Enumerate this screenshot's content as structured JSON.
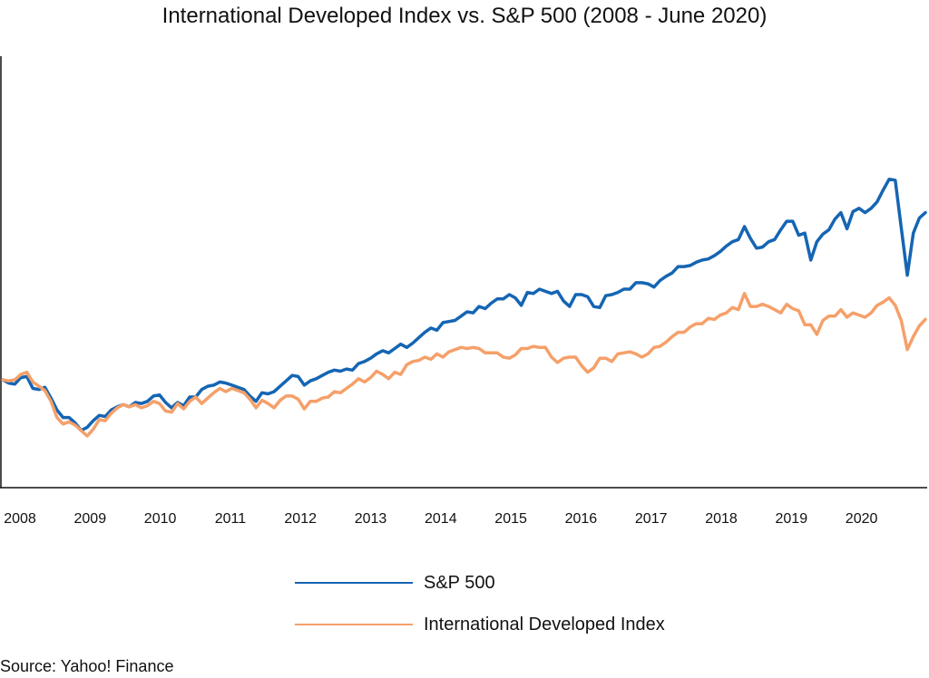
{
  "chart_data": {
    "type": "line",
    "title": "International Developed Index vs. S&P 500 (2008 - June 2020)",
    "x_ticks": [
      "2008",
      "2009",
      "2010",
      "2011",
      "2012",
      "2013",
      "2014",
      "2015",
      "2016",
      "2017",
      "2018",
      "2019",
      "2020"
    ],
    "ylim": [
      0,
      400
    ],
    "grid": false,
    "legend_position": "bottom",
    "series": [
      {
        "name": "S&P 500",
        "color": "#1565b3",
        "values": [
          100,
          97,
          96,
          102,
          103,
          92,
          91,
          93,
          83,
          72,
          65,
          65,
          60,
          53,
          56,
          62,
          67,
          66,
          72,
          75,
          77,
          75,
          79,
          78,
          80,
          85,
          86,
          79,
          74,
          79,
          76,
          84,
          84,
          91,
          94,
          95,
          98,
          97,
          95,
          93,
          91,
          85,
          80,
          88,
          87,
          89,
          94,
          99,
          104,
          103,
          95,
          99,
          101,
          104,
          107,
          109,
          108,
          110,
          109,
          115,
          117,
          120,
          124,
          127,
          125,
          129,
          133,
          130,
          134,
          139,
          144,
          148,
          146,
          153,
          154,
          155,
          159,
          163,
          162,
          168,
          166,
          171,
          175,
          175,
          179,
          176,
          169,
          181,
          180,
          184,
          182,
          180,
          182,
          173,
          168,
          179,
          179,
          177,
          168,
          167,
          178,
          179,
          181,
          184,
          184,
          190,
          190,
          189,
          186,
          192,
          196,
          199,
          205,
          205,
          206,
          209,
          211,
          212,
          215,
          219,
          224,
          228,
          230,
          242,
          231,
          222,
          223,
          228,
          230,
          239,
          247,
          247,
          234,
          236,
          211,
          228,
          235,
          239,
          249,
          255,
          240,
          256,
          259,
          255,
          259,
          265,
          276,
          286,
          285,
          241,
          197,
          236,
          250,
          255
        ]
      },
      {
        "name": "International Developed Index",
        "color": "#f5a06a",
        "values": [
          100,
          99,
          100,
          105,
          107,
          98,
          94,
          90,
          80,
          65,
          59,
          61,
          58,
          53,
          48,
          54,
          63,
          62,
          69,
          74,
          77,
          75,
          77,
          74,
          76,
          80,
          78,
          71,
          70,
          78,
          73,
          80,
          84,
          78,
          83,
          88,
          92,
          89,
          92,
          90,
          88,
          82,
          74,
          81,
          78,
          74,
          81,
          85,
          85,
          82,
          73,
          80,
          80,
          83,
          84,
          89,
          88,
          92,
          96,
          101,
          98,
          102,
          108,
          105,
          101,
          107,
          105,
          114,
          117,
          118,
          121,
          119,
          124,
          121,
          126,
          128,
          130,
          129,
          130,
          129,
          125,
          125,
          125,
          121,
          120,
          123,
          129,
          129,
          131,
          130,
          130,
          121,
          116,
          120,
          121,
          121,
          113,
          107,
          111,
          120,
          120,
          117,
          124,
          125,
          126,
          124,
          121,
          124,
          130,
          131,
          135,
          140,
          144,
          144,
          149,
          152,
          152,
          157,
          156,
          160,
          162,
          167,
          165,
          180,
          168,
          168,
          170,
          168,
          165,
          162,
          170,
          166,
          164,
          151,
          151,
          142,
          155,
          159,
          159,
          165,
          158,
          162,
          160,
          158,
          162,
          169,
          172,
          176,
          169,
          155,
          128,
          140,
          150,
          156
        ]
      }
    ]
  },
  "source": "Source: Yahoo! Finance"
}
